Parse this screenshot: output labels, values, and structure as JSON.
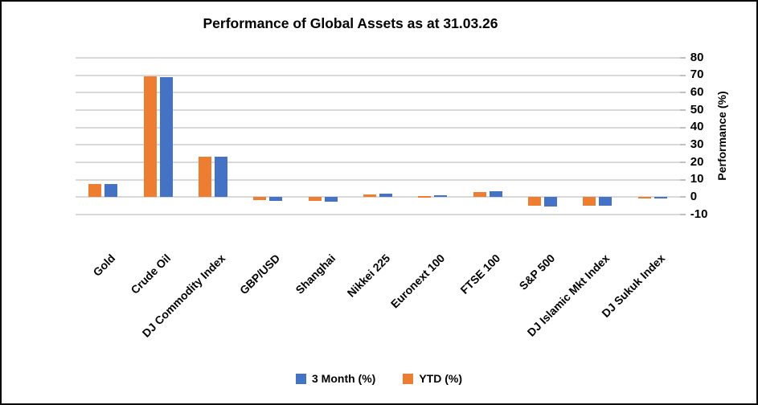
{
  "title": "Performance of Global Assets as at 31.03.26",
  "chart_data": {
    "type": "bar",
    "title": "Performance of Global Assets as at 31.03.26",
    "categories": [
      "Gold",
      "Crude Oil",
      "DJ Commodity Index",
      "GBP/USD",
      "Shanghai",
      "Nikkei 225",
      "Euronext 100",
      "FTSE 100",
      "S&P 500",
      "DJ Islamic Mkt Index",
      "DJ Sukuk Index"
    ],
    "series": [
      {
        "name": "3 Month (%)",
        "color": "#4472C4",
        "values": [
          7.4,
          69.0,
          23.4,
          -2.1,
          -2.5,
          1.9,
          0.9,
          3.5,
          -5.3,
          -5.0,
          -0.8
        ]
      },
      {
        "name": "YTD (%)",
        "color": "#ED7D31",
        "values": [
          7.6,
          69.2,
          23.1,
          -1.9,
          -2.2,
          1.7,
          0.6,
          3.1,
          -5.0,
          -4.8,
          -0.7
        ]
      }
    ],
    "bar_order_left_to_right": [
      "YTD (%)",
      "3 Month (%)"
    ],
    "xlabel": "",
    "ylabel": "Performance (%)",
    "ylim": [
      -10,
      80
    ],
    "yticks": [
      80,
      70,
      60,
      50,
      40,
      30,
      20,
      10,
      0,
      -10
    ],
    "grid": true,
    "gridline_color": "#D9D9D9",
    "legend_position": "bottom"
  },
  "legend": [
    {
      "label": "3 Month (%)",
      "color": "#4472C4"
    },
    {
      "label": "YTD (%)",
      "color": "#ED7D31"
    }
  ],
  "colors": {
    "background": "#FFFFFF",
    "border": "#000000",
    "text": "#000000",
    "gridline": "#D9D9D9",
    "series_3_month": "#4472C4",
    "series_ytd": "#ED7D31"
  }
}
